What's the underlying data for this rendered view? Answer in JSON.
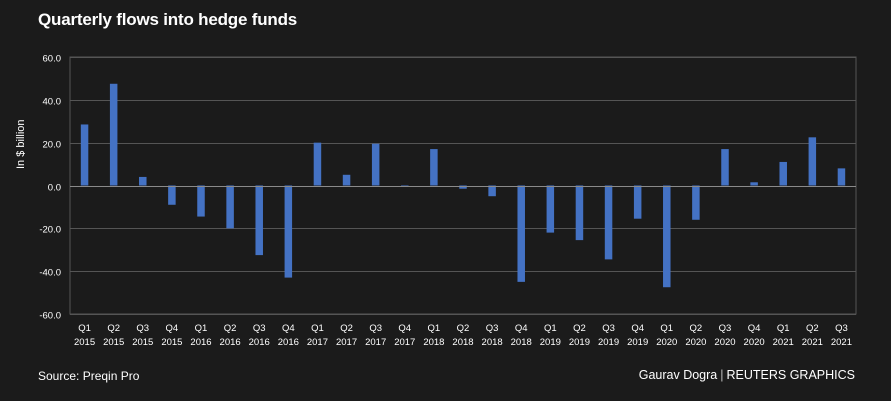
{
  "title": "Quarterly flows into hedge funds",
  "footer": {
    "source": "Source: Preqin Pro",
    "author": "Gaurav Dogra",
    "separator": "|",
    "brand": "REUTERS GRAPHICS"
  },
  "colors": {
    "background": "#1b1b1b",
    "bar": "#4472c4",
    "grid": "#555555",
    "text": "#ffffff"
  },
  "chart_data": {
    "type": "bar",
    "title": "Quarterly flows into hedge funds",
    "xlabel": "",
    "ylabel": "In $ billion",
    "ylim": [
      -60,
      60
    ],
    "yticks": [
      60,
      40,
      20,
      0,
      -20,
      -40,
      -60
    ],
    "ytick_labels": [
      "60.0",
      "40.0",
      "20.0",
      "0.0",
      "-20.0",
      "-40.0",
      "-60.0"
    ],
    "grid": true,
    "categories": [
      [
        "Q1",
        "2015"
      ],
      [
        "Q2",
        "2015"
      ],
      [
        "Q3",
        "2015"
      ],
      [
        "Q4",
        "2015"
      ],
      [
        "Q1",
        "2016"
      ],
      [
        "Q2",
        "2016"
      ],
      [
        "Q3",
        "2016"
      ],
      [
        "Q4",
        "2016"
      ],
      [
        "Q1",
        "2017"
      ],
      [
        "Q2",
        "2017"
      ],
      [
        "Q3",
        "2017"
      ],
      [
        "Q4",
        "2017"
      ],
      [
        "Q1",
        "2018"
      ],
      [
        "Q2",
        "2018"
      ],
      [
        "Q3",
        "2018"
      ],
      [
        "Q4",
        "2018"
      ],
      [
        "Q1",
        "2019"
      ],
      [
        "Q2",
        "2019"
      ],
      [
        "Q3",
        "2019"
      ],
      [
        "Q4",
        "2019"
      ],
      [
        "Q1",
        "2020"
      ],
      [
        "Q2",
        "2020"
      ],
      [
        "Q3",
        "2020"
      ],
      [
        "Q4",
        "2020"
      ],
      [
        "Q1",
        "2021"
      ],
      [
        "Q2",
        "2021"
      ],
      [
        "Q3",
        "2021"
      ]
    ],
    "values": [
      28.5,
      47.5,
      4.0,
      -9.0,
      -14.5,
      -20.0,
      -32.5,
      -43.0,
      20.0,
      5.0,
      19.5,
      -0.5,
      17.0,
      -1.5,
      -5.0,
      -45.0,
      -22.0,
      -25.5,
      -34.5,
      -15.5,
      -47.5,
      -16.0,
      17.0,
      1.5,
      11.0,
      22.5,
      8.0
    ]
  }
}
